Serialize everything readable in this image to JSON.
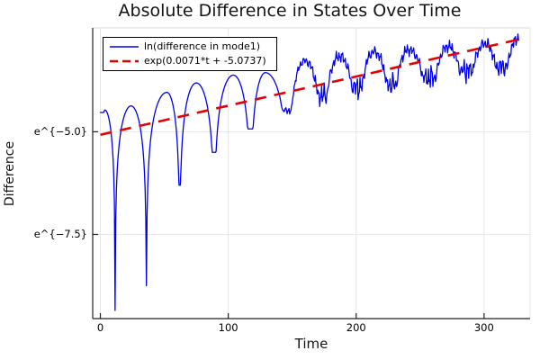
{
  "chart_data": {
    "type": "line",
    "title": "Absolute Difference in States Over Time",
    "xlabel": "Time",
    "ylabel": "Difference",
    "xlim": [
      -6,
      336
    ],
    "ylim": [
      -9.55,
      -2.47
    ],
    "y_scale_note": "y axis shows ln values, tick labels formatted as e^{v}",
    "grid": true,
    "grid_color": "#e6e6e6",
    "spine_color": "#222222",
    "legend_position": "top-left",
    "xticks": {
      "values": [
        0,
        100,
        200,
        300
      ],
      "labels": [
        "0",
        "100",
        "200",
        "300"
      ]
    },
    "yticks": {
      "values": [
        -5.0,
        -7.5
      ],
      "labels": [
        "e^{−5.0}",
        "e^{−7.5}"
      ]
    },
    "series": [
      {
        "name": "ln(difference in mode1)",
        "style": "solid",
        "color": "#0000ee",
        "width": 1.3,
        "shape_model": "piecewise log-abs-cosine arcs through alternating extrema [t, ln_value]; sharp cusp dips early, jittery oscillation after t≈136",
        "extrema": [
          [
            0,
            -4.53
          ],
          [
            3.5,
            -4.47
          ],
          [
            11.5,
            -9.35
          ],
          [
            24,
            -4.37
          ],
          [
            36,
            -8.75
          ],
          [
            52,
            -4.04
          ],
          [
            62,
            -6.3
          ],
          [
            75,
            -3.81
          ],
          [
            89,
            -5.5
          ],
          [
            104,
            -3.62
          ],
          [
            117.5,
            -4.93
          ],
          [
            129,
            -3.56
          ],
          [
            147,
            -4.48
          ],
          [
            160,
            -3.27
          ],
          [
            174,
            -4.12
          ],
          [
            187,
            -3.16
          ],
          [
            201,
            -3.92
          ],
          [
            214,
            -3.05
          ],
          [
            228,
            -3.85
          ],
          [
            241,
            -3.0
          ],
          [
            258,
            -3.68
          ],
          [
            272,
            -2.92
          ],
          [
            286,
            -3.5
          ],
          [
            301,
            -2.85
          ],
          [
            314,
            -3.42
          ],
          [
            327,
            -2.72
          ]
        ],
        "noise": {
          "start_t": 136,
          "ramp": 30,
          "amp": 0.085,
          "dip_boost": 1.6
        }
      },
      {
        "name": "exp(0.0071*t + -5.0737)",
        "style": "dashed",
        "color": "#e60000",
        "width": 2.6,
        "dash": [
          13,
          9
        ],
        "slope": 0.0071,
        "intercept": -5.0737,
        "t_range": [
          0,
          328
        ]
      }
    ]
  }
}
